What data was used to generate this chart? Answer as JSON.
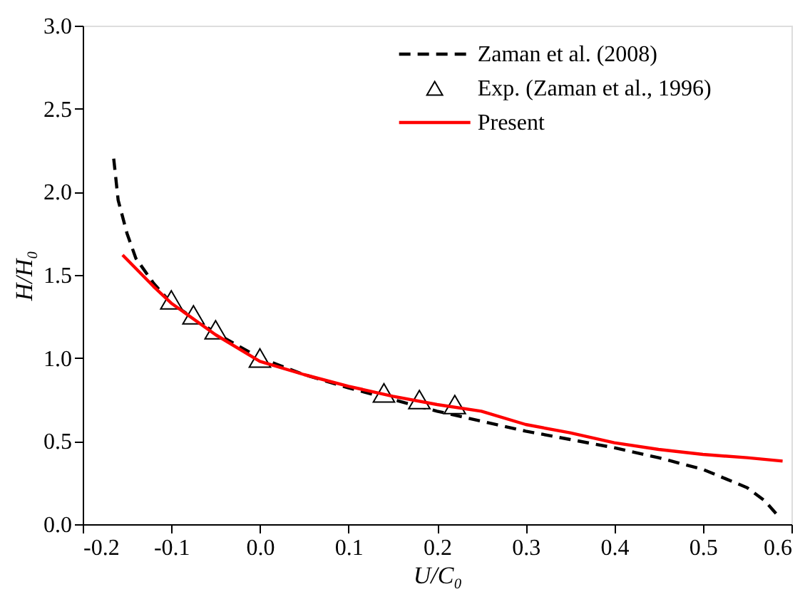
{
  "chart_data": {
    "type": "line",
    "xlabel": "U/C₀",
    "ylabel": "H/H₀",
    "xlim": [
      -0.2,
      0.6
    ],
    "xticks": [
      {
        "value": -0.2,
        "label": "-0.2"
      },
      {
        "value": -0.1,
        "label": "-0.1"
      },
      {
        "value": 0,
        "label": "0.0"
      },
      {
        "value": 0.1,
        "label": "0.1"
      },
      {
        "value": 0.2,
        "label": "0.2"
      },
      {
        "value": 0.3,
        "label": "0.3"
      },
      {
        "value": 0.4,
        "label": "0.4"
      },
      {
        "value": 0.5,
        "label": "0.5"
      },
      {
        "value": 0.6,
        "label": "0.6"
      }
    ],
    "ylim": [
      0,
      3
    ],
    "yticks": [
      {
        "value": 0,
        "label": "0.0"
      },
      0.5,
      {
        "value": 1,
        "label": "1.0"
      },
      1.5,
      {
        "value": 2,
        "label": "2.0"
      },
      2.5,
      {
        "value": 3,
        "label": "3.0"
      }
    ],
    "grid": false,
    "legend": "top right",
    "series": [
      {
        "name": "Zaman et al. (2008)",
        "line_style": "dashed",
        "color": "#000000",
        "x": [
          -0.165,
          -0.16,
          -0.15,
          -0.14,
          -0.12,
          -0.1,
          -0.05,
          0,
          0.05,
          0.1,
          0.15,
          0.2,
          0.25,
          0.3,
          0.35,
          0.4,
          0.45,
          0.5,
          0.55,
          0.57,
          0.585
        ],
        "values": [
          2.2,
          1.95,
          1.75,
          1.6,
          1.45,
          1.33,
          1.15,
          1.0,
          0.9,
          0.82,
          0.75,
          0.68,
          0.62,
          0.56,
          0.51,
          0.46,
          0.4,
          0.33,
          0.22,
          0.14,
          0.05
        ]
      },
      {
        "name": "Exp. (Zaman et al., 1996)",
        "type": "scatter",
        "marker": "triangle",
        "color": "#000000",
        "x": [
          -0.1,
          -0.075,
          -0.05,
          0.0,
          0.14,
          0.18,
          0.22
        ],
        "values": [
          1.35,
          1.26,
          1.17,
          1.0,
          0.79,
          0.75,
          0.72
        ]
      },
      {
        "name": "Present",
        "line_style": "solid",
        "color": "#ff0000",
        "x": [
          -0.155,
          -0.12,
          -0.1,
          -0.05,
          0,
          0.05,
          0.1,
          0.15,
          0.2,
          0.25,
          0.3,
          0.35,
          0.4,
          0.45,
          0.5,
          0.55,
          0.59
        ],
        "values": [
          1.62,
          1.43,
          1.33,
          1.14,
          0.98,
          0.9,
          0.83,
          0.77,
          0.72,
          0.68,
          0.6,
          0.55,
          0.49,
          0.45,
          0.42,
          0.4,
          0.38
        ]
      }
    ]
  }
}
